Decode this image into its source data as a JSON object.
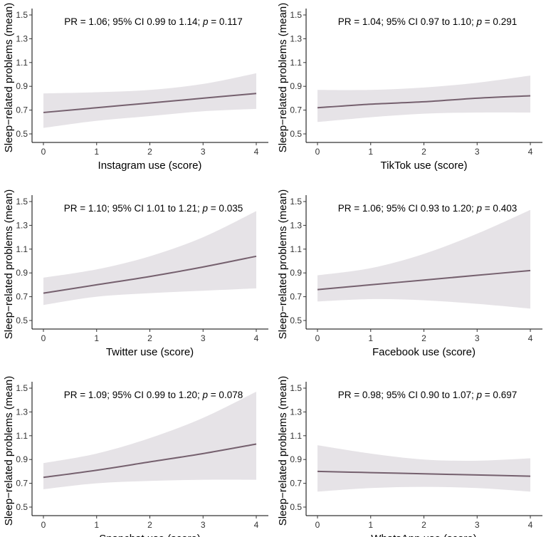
{
  "chart_data": [
    {
      "type": "line",
      "title": "",
      "xlabel": "Instagram use (score)",
      "ylabel": "Sleep−related problems (mean)",
      "xlim": [
        0,
        4
      ],
      "ylim": [
        0.5,
        1.5
      ],
      "xticks": [
        "0",
        "1",
        "2",
        "3",
        "4"
      ],
      "yticks": [
        "0.5",
        "0.7",
        "0.9",
        "1.1",
        "1.3",
        "1.5"
      ],
      "annotation": {
        "prefix": "PR = 1.06; 95% CI 0.99 to 1.14; ",
        "p_symbol": "p",
        "suffix": " = 0.117"
      },
      "series": [
        {
          "name": "fit",
          "x": [
            0,
            1,
            2,
            3,
            4
          ],
          "y": [
            0.68,
            0.72,
            0.76,
            0.8,
            0.84
          ]
        },
        {
          "name": "ci_upper",
          "x": [
            0,
            1,
            2,
            3,
            4
          ],
          "y": [
            0.84,
            0.85,
            0.87,
            0.92,
            1.01
          ]
        },
        {
          "name": "ci_lower",
          "x": [
            0,
            1,
            2,
            3,
            4
          ],
          "y": [
            0.55,
            0.61,
            0.65,
            0.69,
            0.71
          ]
        }
      ]
    },
    {
      "type": "line",
      "title": "",
      "xlabel": "TikTok use (score)",
      "ylabel": "Sleep−related problems (mean)",
      "xlim": [
        0,
        4
      ],
      "ylim": [
        0.5,
        1.5
      ],
      "xticks": [
        "0",
        "1",
        "2",
        "3",
        "4"
      ],
      "yticks": [
        "0.5",
        "0.7",
        "0.9",
        "1.1",
        "1.3",
        "1.5"
      ],
      "annotation": {
        "prefix": "PR = 1.04; 95% CI 0.97 to 1.10; ",
        "p_symbol": "p",
        "suffix": " = 0.291"
      },
      "series": [
        {
          "name": "fit",
          "x": [
            0,
            1,
            2,
            3,
            4
          ],
          "y": [
            0.72,
            0.75,
            0.77,
            0.8,
            0.82
          ]
        },
        {
          "name": "ci_upper",
          "x": [
            0,
            1,
            2,
            3,
            4
          ],
          "y": [
            0.87,
            0.87,
            0.89,
            0.93,
            0.99
          ]
        },
        {
          "name": "ci_lower",
          "x": [
            0,
            1,
            2,
            3,
            4
          ],
          "y": [
            0.6,
            0.64,
            0.67,
            0.68,
            0.68
          ]
        }
      ]
    },
    {
      "type": "line",
      "title": "",
      "xlabel": "Twitter use (score)",
      "ylabel": "Sleep−related problems (mean)",
      "xlim": [
        0,
        4
      ],
      "ylim": [
        0.5,
        1.5
      ],
      "xticks": [
        "0",
        "1",
        "2",
        "3",
        "4"
      ],
      "yticks": [
        "0.5",
        "0.7",
        "0.9",
        "1.1",
        "1.3",
        "1.5"
      ],
      "annotation": {
        "prefix": "PR = 1.10; 95% CI 1.01 to 1.21; ",
        "p_symbol": "p",
        "suffix": " = 0.035"
      },
      "series": [
        {
          "name": "fit",
          "x": [
            0,
            1,
            2,
            3,
            4
          ],
          "y": [
            0.73,
            0.8,
            0.87,
            0.95,
            1.04
          ]
        },
        {
          "name": "ci_upper",
          "x": [
            0,
            1,
            2,
            3,
            4
          ],
          "y": [
            0.86,
            0.93,
            1.04,
            1.2,
            1.42
          ]
        },
        {
          "name": "ci_lower",
          "x": [
            0,
            1,
            2,
            3,
            4
          ],
          "y": [
            0.63,
            0.7,
            0.73,
            0.75,
            0.77
          ]
        }
      ]
    },
    {
      "type": "line",
      "title": "",
      "xlabel": "Facebook use (score)",
      "ylabel": "Sleep−related problems (mean)",
      "xlim": [
        0,
        4
      ],
      "ylim": [
        0.5,
        1.5
      ],
      "xticks": [
        "0",
        "1",
        "2",
        "3",
        "4"
      ],
      "yticks": [
        "0.5",
        "0.7",
        "0.9",
        "1.1",
        "1.3",
        "1.5"
      ],
      "annotation": {
        "prefix": "PR = 1.06; 95% CI 0.93 to 1.20; ",
        "p_symbol": "p",
        "suffix": " = 0.403"
      },
      "series": [
        {
          "name": "fit",
          "x": [
            0,
            1,
            2,
            3,
            4
          ],
          "y": [
            0.76,
            0.8,
            0.84,
            0.88,
            0.92
          ]
        },
        {
          "name": "ci_upper",
          "x": [
            0,
            1,
            2,
            3,
            4
          ],
          "y": [
            0.88,
            0.94,
            1.06,
            1.23,
            1.43
          ]
        },
        {
          "name": "ci_lower",
          "x": [
            0,
            1,
            2,
            3,
            4
          ],
          "y": [
            0.66,
            0.68,
            0.67,
            0.64,
            0.6
          ]
        }
      ]
    },
    {
      "type": "line",
      "title": "",
      "xlabel": "Snapchat use (score)",
      "ylabel": "Sleep−related problems (mean)",
      "xlim": [
        0,
        4
      ],
      "ylim": [
        0.5,
        1.5
      ],
      "xticks": [
        "0",
        "1",
        "2",
        "3",
        "4"
      ],
      "yticks": [
        "0.5",
        "0.7",
        "0.9",
        "1.1",
        "1.3",
        "1.5"
      ],
      "annotation": {
        "prefix": "PR = 1.09; 95% CI 0.99 to 1.20; ",
        "p_symbol": "p",
        "suffix": " = 0.078"
      },
      "series": [
        {
          "name": "fit",
          "x": [
            0,
            1,
            2,
            3,
            4
          ],
          "y": [
            0.75,
            0.81,
            0.88,
            0.95,
            1.03
          ]
        },
        {
          "name": "ci_upper",
          "x": [
            0,
            1,
            2,
            3,
            4
          ],
          "y": [
            0.87,
            0.95,
            1.08,
            1.25,
            1.47
          ]
        },
        {
          "name": "ci_lower",
          "x": [
            0,
            1,
            2,
            3,
            4
          ],
          "y": [
            0.65,
            0.7,
            0.72,
            0.73,
            0.73
          ]
        }
      ]
    },
    {
      "type": "line",
      "title": "",
      "xlabel": "WhatsApp use (score)",
      "ylabel": "Sleep−related problems (mean)",
      "xlim": [
        0,
        4
      ],
      "ylim": [
        0.5,
        1.5
      ],
      "xticks": [
        "0",
        "1",
        "2",
        "3",
        "4"
      ],
      "yticks": [
        "0.5",
        "0.7",
        "0.9",
        "1.1",
        "1.3",
        "1.5"
      ],
      "annotation": {
        "prefix": "PR = 0.98; 95% CI 0.90 to 1.07; ",
        "p_symbol": "p",
        "suffix": " = 0.697"
      },
      "series": [
        {
          "name": "fit",
          "x": [
            0,
            1,
            2,
            3,
            4
          ],
          "y": [
            0.8,
            0.79,
            0.78,
            0.77,
            0.76
          ]
        },
        {
          "name": "ci_upper",
          "x": [
            0,
            1,
            2,
            3,
            4
          ],
          "y": [
            1.02,
            0.95,
            0.9,
            0.89,
            0.91
          ]
        },
        {
          "name": "ci_lower",
          "x": [
            0,
            1,
            2,
            3,
            4
          ],
          "y": [
            0.63,
            0.66,
            0.67,
            0.66,
            0.63
          ]
        }
      ]
    }
  ],
  "colors": {
    "line": "#75606e",
    "ribbon": "#e6e3e7",
    "axis": "#000000"
  }
}
